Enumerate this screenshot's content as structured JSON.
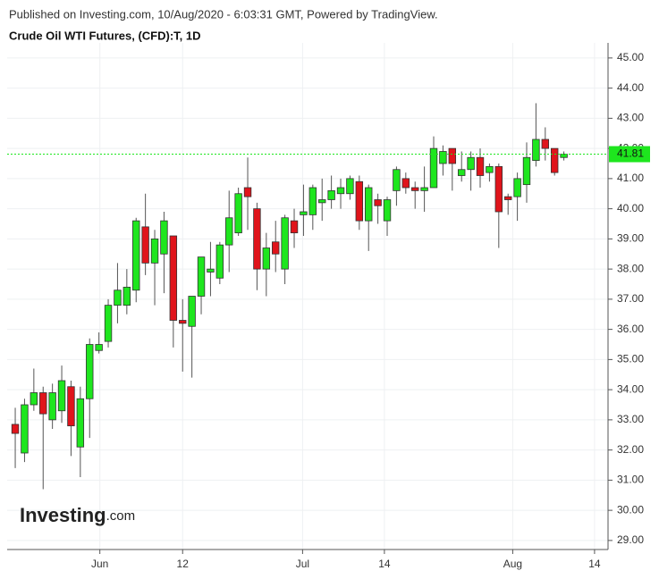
{
  "header": {
    "published": "Published on Investing.com, 10/Aug/2020 - 6:03:31 GMT, Powered by TradingView.",
    "instrument": "Crude Oil WTI Futures, (CFD):T, 1D"
  },
  "logo": {
    "brand": "Investing",
    "suffix": ".com"
  },
  "chart_data": {
    "type": "candlestick",
    "up_color": "#1ee61e",
    "down_color": "#e0141b",
    "grid": true,
    "open": [
      32.85,
      31.9,
      33.5,
      33.9,
      33.0,
      33.3,
      34.1,
      32.1,
      33.7,
      35.3,
      35.6,
      36.8,
      36.8,
      37.3,
      39.4,
      38.2,
      38.5,
      39.1,
      36.3,
      36.1,
      37.1,
      37.9,
      37.7,
      38.8,
      39.2,
      40.7,
      40.0,
      38.0,
      38.9,
      38.0,
      39.6,
      39.8,
      39.8,
      40.2,
      40.3,
      40.5,
      40.5,
      40.9,
      39.6,
      40.3,
      39.6,
      40.6,
      41.0,
      40.7,
      40.6,
      40.7,
      41.5,
      42.0,
      41.1,
      41.3,
      41.7,
      41.2,
      41.4,
      40.4,
      40.4,
      40.8,
      41.6,
      42.3,
      42.0,
      41.7
    ],
    "high": [
      33.4,
      33.7,
      34.7,
      34.1,
      34.2,
      34.8,
      34.3,
      34.1,
      35.7,
      35.9,
      37.0,
      38.2,
      38.0,
      39.7,
      40.5,
      39.3,
      39.9,
      39.1,
      37.0,
      37.1,
      38.4,
      38.9,
      38.9,
      40.6,
      40.7,
      41.7,
      40.2,
      39.2,
      39.6,
      39.8,
      40.0,
      40.8,
      40.8,
      41.0,
      41.1,
      41.0,
      41.1,
      41.1,
      40.8,
      40.5,
      40.4,
      41.4,
      41.2,
      40.9,
      41.4,
      42.4,
      42.1,
      42.0,
      41.9,
      41.9,
      42.0,
      41.5,
      41.5,
      40.5,
      41.2,
      42.2,
      43.5,
      42.7,
      42.0,
      41.9
    ],
    "low": [
      31.4,
      31.6,
      33.3,
      30.7,
      32.7,
      32.9,
      31.8,
      31.1,
      32.4,
      35.2,
      35.4,
      36.2,
      36.5,
      36.9,
      37.8,
      36.8,
      37.2,
      35.4,
      34.6,
      34.4,
      36.5,
      37.1,
      37.5,
      37.9,
      39.1,
      39.3,
      37.3,
      37.1,
      37.9,
      37.5,
      38.7,
      39.1,
      39.3,
      39.6,
      40.0,
      40.0,
      40.3,
      39.3,
      38.6,
      39.5,
      39.1,
      40.1,
      40.5,
      40.0,
      39.9,
      40.7,
      41.1,
      40.6,
      40.9,
      40.6,
      40.7,
      40.9,
      38.7,
      39.8,
      39.6,
      40.2,
      41.4,
      41.6,
      41.1,
      41.6
    ],
    "close": [
      32.55,
      33.5,
      33.9,
      33.2,
      33.9,
      34.3,
      32.8,
      33.7,
      35.5,
      35.5,
      36.8,
      37.3,
      37.4,
      39.6,
      38.2,
      39.0,
      39.6,
      36.3,
      36.2,
      37.1,
      38.4,
      38.0,
      38.8,
      39.7,
      40.5,
      40.4,
      38.0,
      38.7,
      38.5,
      39.7,
      39.2,
      39.9,
      40.7,
      40.3,
      40.6,
      40.7,
      41.0,
      39.6,
      40.7,
      40.1,
      40.3,
      41.3,
      40.7,
      40.6,
      40.7,
      42.0,
      41.9,
      41.5,
      41.3,
      41.7,
      41.1,
      41.4,
      39.9,
      40.3,
      41.0,
      41.7,
      42.3,
      42.0,
      41.2,
      41.81
    ],
    "last_price": 41.81,
    "xlim": [
      -0.87,
      63.75
    ],
    "xticks": [
      {
        "value": 9.1,
        "label": "Jun"
      },
      {
        "value": 18,
        "label": "12"
      },
      {
        "value": 30.9,
        "label": "Jul"
      },
      {
        "value": 39.7,
        "label": "14"
      },
      {
        "value": 53.5,
        "label": "Aug"
      },
      {
        "value": 62.3,
        "label": "14"
      }
    ],
    "ylim": [
      28.7,
      45.5
    ],
    "yticks": [
      {
        "value": 45,
        "label": "45.00"
      },
      {
        "value": 44,
        "label": "44.00"
      },
      {
        "value": 43,
        "label": "43.00"
      },
      {
        "value": 42,
        "label": "42.00"
      },
      {
        "value": 41,
        "label": "41.00"
      },
      {
        "value": 40,
        "label": "40.00"
      },
      {
        "value": 39,
        "label": "39.00"
      },
      {
        "value": 38,
        "label": "38.00"
      },
      {
        "value": 37,
        "label": "37.00"
      },
      {
        "value": 36,
        "label": "36.00"
      },
      {
        "value": 35,
        "label": "35.00"
      },
      {
        "value": 34,
        "label": "34.00"
      },
      {
        "value": 33,
        "label": "33.00"
      },
      {
        "value": 32,
        "label": "32.00"
      },
      {
        "value": 31,
        "label": "31.00"
      },
      {
        "value": 30,
        "label": "30.00"
      },
      {
        "value": 29,
        "label": "29.00"
      }
    ]
  }
}
